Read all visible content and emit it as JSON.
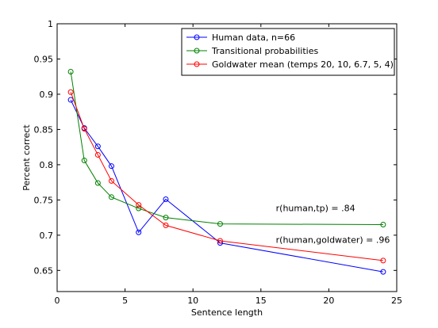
{
  "chart_data": {
    "type": "line",
    "title": "",
    "xlabel": "Sentence length",
    "ylabel": "Percent correct",
    "xlim": [
      0,
      25
    ],
    "ylim": [
      0.62,
      1.0
    ],
    "xticks": [
      0,
      5,
      10,
      15,
      20,
      25
    ],
    "yticks": [
      0.65,
      0.7,
      0.75,
      0.8,
      0.85,
      0.9,
      0.95,
      1
    ],
    "xtick_labels": [
      "0",
      "5",
      "10",
      "15",
      "20",
      "25"
    ],
    "ytick_labels": [
      "0.65",
      "0.7",
      "0.75",
      "0.8",
      "0.85",
      "0.9",
      "0.95",
      "1"
    ],
    "grid": false,
    "legend_position": "top-right",
    "series": [
      {
        "name": "Human data, n=66",
        "color": "#0000ff",
        "x": [
          1,
          2,
          3,
          4,
          6,
          8,
          12,
          24
        ],
        "y": [
          0.892,
          0.852,
          0.826,
          0.798,
          0.704,
          0.751,
          0.689,
          0.648
        ]
      },
      {
        "name": "Transitional probabilities",
        "color": "#008000",
        "x": [
          1,
          2,
          3,
          4,
          6,
          8,
          12,
          24
        ],
        "y": [
          0.932,
          0.806,
          0.774,
          0.754,
          0.738,
          0.725,
          0.716,
          0.715
        ]
      },
      {
        "name": "Goldwater mean (temps 20, 10, 6.7, 5, 4)",
        "color": "#ff0000",
        "x": [
          1,
          2,
          3,
          4,
          6,
          8,
          12,
          24
        ],
        "y": [
          0.903,
          0.851,
          0.814,
          0.777,
          0.743,
          0.714,
          0.692,
          0.664
        ]
      }
    ],
    "annotations": [
      {
        "text": "r(human,tp) = .84",
        "x": 16.1,
        "y": 0.734
      },
      {
        "text": "r(human,goldwater) = .96",
        "x": 16.1,
        "y": 0.689
      }
    ]
  }
}
